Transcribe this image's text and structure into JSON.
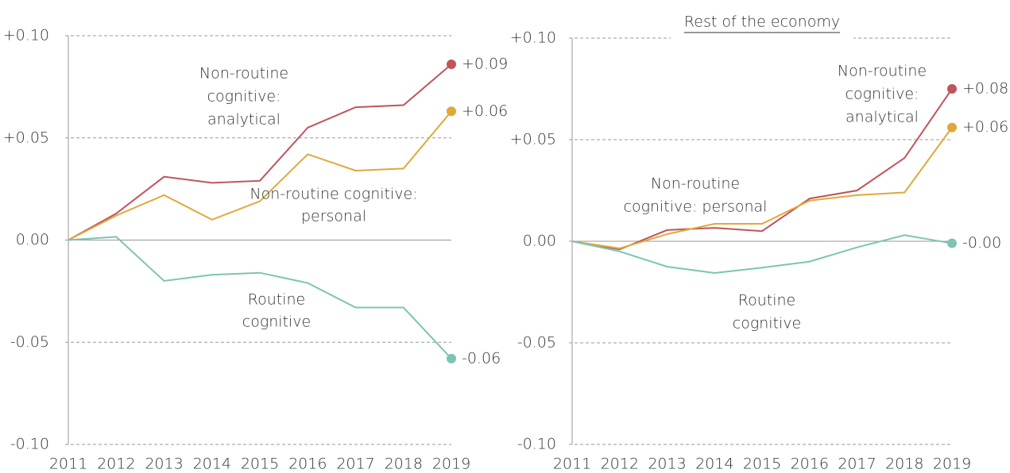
{
  "chart_data": [
    {
      "type": "line",
      "x": [
        2011,
        2012,
        2013,
        2014,
        2015,
        2016,
        2017,
        2018,
        2019
      ],
      "xlim": [
        2011,
        2019
      ],
      "xticks": [
        2011,
        2012,
        2013,
        2014,
        2015,
        2016,
        2017,
        2018,
        2019
      ],
      "ylim": [
        -0.1,
        0.1
      ],
      "yticks": [
        {
          "value": -0.1,
          "label": "-0.10"
        },
        {
          "value": -0.05,
          "label": "-0.05"
        },
        {
          "value": 0,
          "label": "0.00"
        },
        {
          "value": 0.05,
          "label": "+0.05"
        },
        {
          "value": 0.1,
          "label": "+0.10"
        }
      ],
      "grid": true,
      "series": [
        {
          "name": [
            "Non-routine",
            "cognitive:",
            "analytical"
          ],
          "color": "#c0545a",
          "label_color": "#c0545a",
          "values": [
            0,
            0.013,
            0.031,
            0.028,
            0.029,
            0.055,
            0.065,
            0.066,
            0.086
          ],
          "value_labels": [
            null,
            null,
            null,
            null,
            null,
            null,
            null,
            null,
            "+0.09"
          ]
        },
        {
          "name": [
            "Non-routine cognitive:",
            "personal"
          ],
          "color": "#e0a83a",
          "label_color": "#e0a83a",
          "values": [
            0,
            0.012,
            0.022,
            0.01,
            0.019,
            0.042,
            0.034,
            0.035,
            0.063
          ],
          "value_labels": [
            null,
            null,
            null,
            null,
            null,
            null,
            null,
            null,
            "+0.06"
          ]
        },
        {
          "name": [
            "Routine",
            "cognitive"
          ],
          "color": "#7cc4b4",
          "label_color": "#5fb3a2",
          "values": [
            0,
            0.0016,
            -0.02,
            -0.017,
            -0.016,
            -0.021,
            -0.033,
            -0.033,
            -0.058
          ],
          "value_labels": [
            null,
            null,
            null,
            null,
            null,
            null,
            null,
            null,
            "-0.06"
          ]
        }
      ]
    },
    {
      "type": "line",
      "title": "Rest of the economy",
      "x": [
        2011,
        2012,
        2013,
        2014,
        2015,
        2016,
        2017,
        2018,
        2019
      ],
      "xlim": [
        2011,
        2019
      ],
      "xticks": [
        2011,
        2012,
        2013,
        2014,
        2015,
        2016,
        2017,
        2018,
        2019
      ],
      "ylim": [
        -0.1,
        0.1
      ],
      "yticks": [
        {
          "value": -0.1,
          "label": "-0.10"
        },
        {
          "value": -0.05,
          "label": "-0.05"
        },
        {
          "value": 0,
          "label": "0.00"
        },
        {
          "value": 0.05,
          "label": "+0.05"
        },
        {
          "value": 0.1,
          "label": "+0.10"
        }
      ],
      "grid": true,
      "series": [
        {
          "name": [
            "Non-routine",
            "cognitive:",
            "analytical"
          ],
          "color": "#c0545a",
          "label_color": "#c0545a",
          "values": [
            0,
            -0.004,
            0.0055,
            0.0066,
            0.005,
            0.021,
            0.025,
            0.041,
            0.075
          ],
          "value_labels": [
            null,
            null,
            null,
            null,
            null,
            null,
            null,
            null,
            "+0.08"
          ]
        },
        {
          "name": [
            "Non-routine",
            "cognitive: personal"
          ],
          "color": "#e0a83a",
          "label_color": "#e0a83a",
          "values": [
            0,
            -0.0035,
            0.0035,
            0.0086,
            0.0086,
            0.02,
            0.0227,
            0.024,
            0.056
          ],
          "value_labels": [
            null,
            null,
            null,
            null,
            null,
            null,
            null,
            null,
            "+0.06"
          ]
        },
        {
          "name": [
            "Routine",
            "cognitive"
          ],
          "color": "#7cc4b4",
          "label_color": "#5fb3a2",
          "values": [
            0,
            -0.005,
            -0.0125,
            -0.0156,
            -0.013,
            -0.01,
            -0.003,
            0.003,
            -0.001
          ],
          "value_labels": [
            null,
            null,
            null,
            null,
            null,
            null,
            null,
            null,
            "-0.00"
          ]
        }
      ]
    }
  ]
}
